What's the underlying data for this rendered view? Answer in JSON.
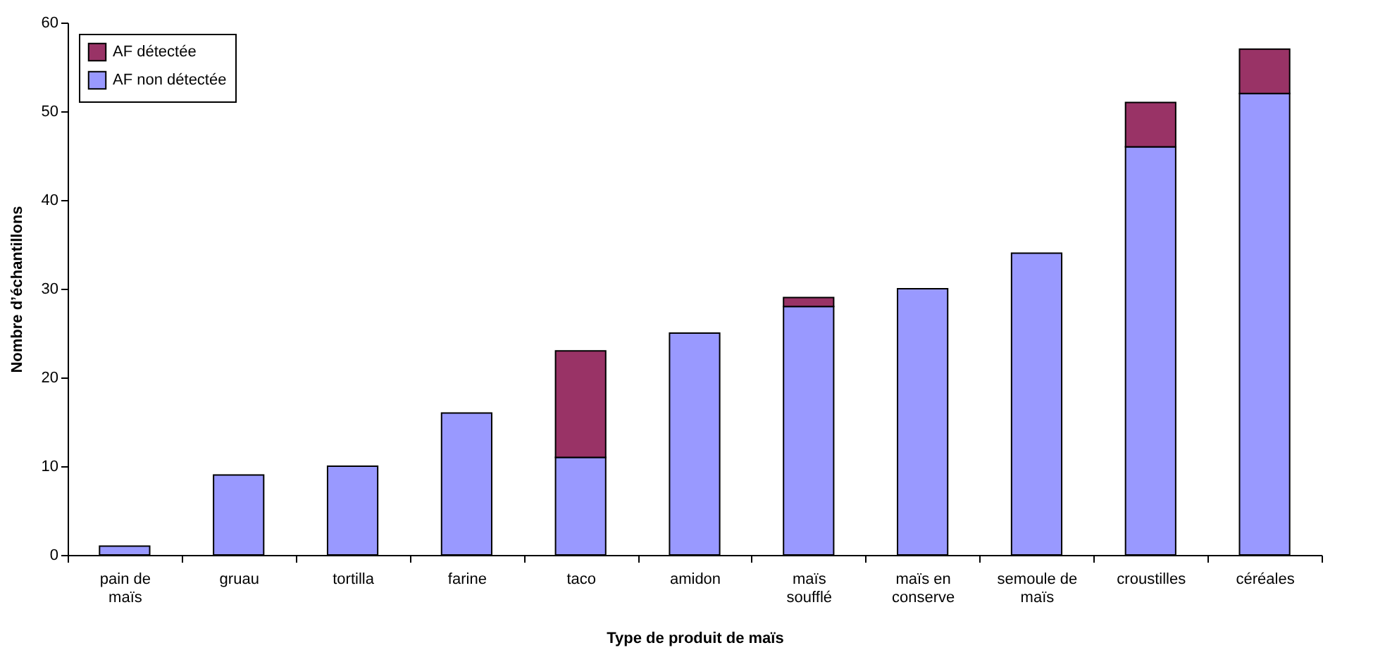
{
  "chart_data": {
    "type": "bar",
    "xlabel": "Type de produit de maïs",
    "ylabel": "Nombre d’échantillons",
    "categories": [
      "pain de maïs",
      "gruau",
      "tortilla",
      "farine",
      "taco",
      "amidon",
      "maïs soufflé",
      "maïs en conserve",
      "semoule de maïs",
      "croustilles",
      "céréales"
    ],
    "stacked": true,
    "series": [
      {
        "name": "AF non détectée",
        "color": "#9999ff",
        "values": [
          1,
          9,
          10,
          16,
          11,
          25,
          28,
          30,
          34,
          46,
          52
        ]
      },
      {
        "name": "AF détectée",
        "color": "#993366",
        "values": [
          null,
          null,
          null,
          null,
          12,
          null,
          1,
          null,
          null,
          5,
          5
        ]
      }
    ],
    "ylim": [
      0,
      60
    ],
    "yticks": [
      0,
      10,
      20,
      30,
      40,
      50,
      60
    ],
    "grid": false,
    "legend": "top left"
  }
}
